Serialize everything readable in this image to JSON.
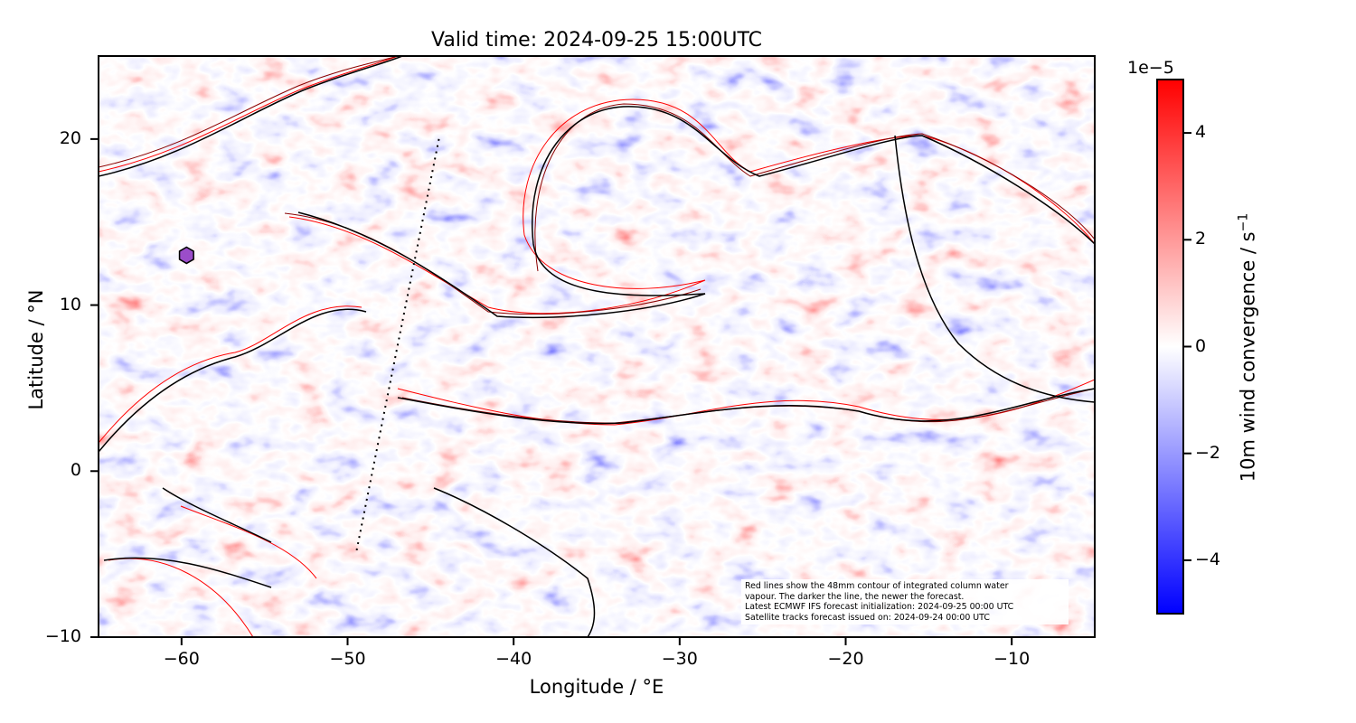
{
  "title": "Valid time: 2024-09-25 15:00UTC",
  "xaxis": {
    "label": "Longitude / °E",
    "ticks": [
      "−60",
      "−50",
      "−40",
      "−30",
      "−20",
      "−10"
    ],
    "values": [
      -60,
      -50,
      -40,
      -30,
      -20,
      -10
    ],
    "range": [
      -65,
      -5
    ]
  },
  "yaxis": {
    "label": "Latitude / °N",
    "ticks": [
      "20",
      "10",
      "0",
      "−10"
    ],
    "values": [
      20,
      10,
      0,
      -10
    ],
    "range": [
      -10,
      25
    ]
  },
  "colorbar": {
    "label": "10m wind convergence / s",
    "label_sup": "−1",
    "exponent": "1e−5",
    "ticks": [
      "4",
      "2",
      "0",
      "−2",
      "−4"
    ],
    "values": [
      4,
      2,
      0,
      -2,
      -4
    ],
    "range": [
      -5,
      5
    ],
    "colormap": "bwr",
    "colors": {
      "low": "#0000ff",
      "mid": "#ffffff",
      "high": "#ff0000"
    }
  },
  "annotation": {
    "line1": "Red lines show the 48mm contour of integrated column water",
    "line2": "vapour. The darker the line, the newer the forecast.",
    "line3": "Latest ECMWF IFS forecast initialization: 2024-09-25 00:00 UTC",
    "line4": "Satellite tracks forecast issued on: 2024-09-24 00:00 UTC"
  },
  "satellite_track": {
    "from": [
      -44.5,
      20
    ],
    "to": [
      -49.5,
      -5
    ]
  },
  "marker": {
    "shape": "hexagon",
    "lon": -59.7,
    "lat": 13,
    "color": "#9b4dca"
  },
  "contour_colors": {
    "newest": "#000000",
    "older": "#ff0000",
    "mid": "#8b0000"
  }
}
